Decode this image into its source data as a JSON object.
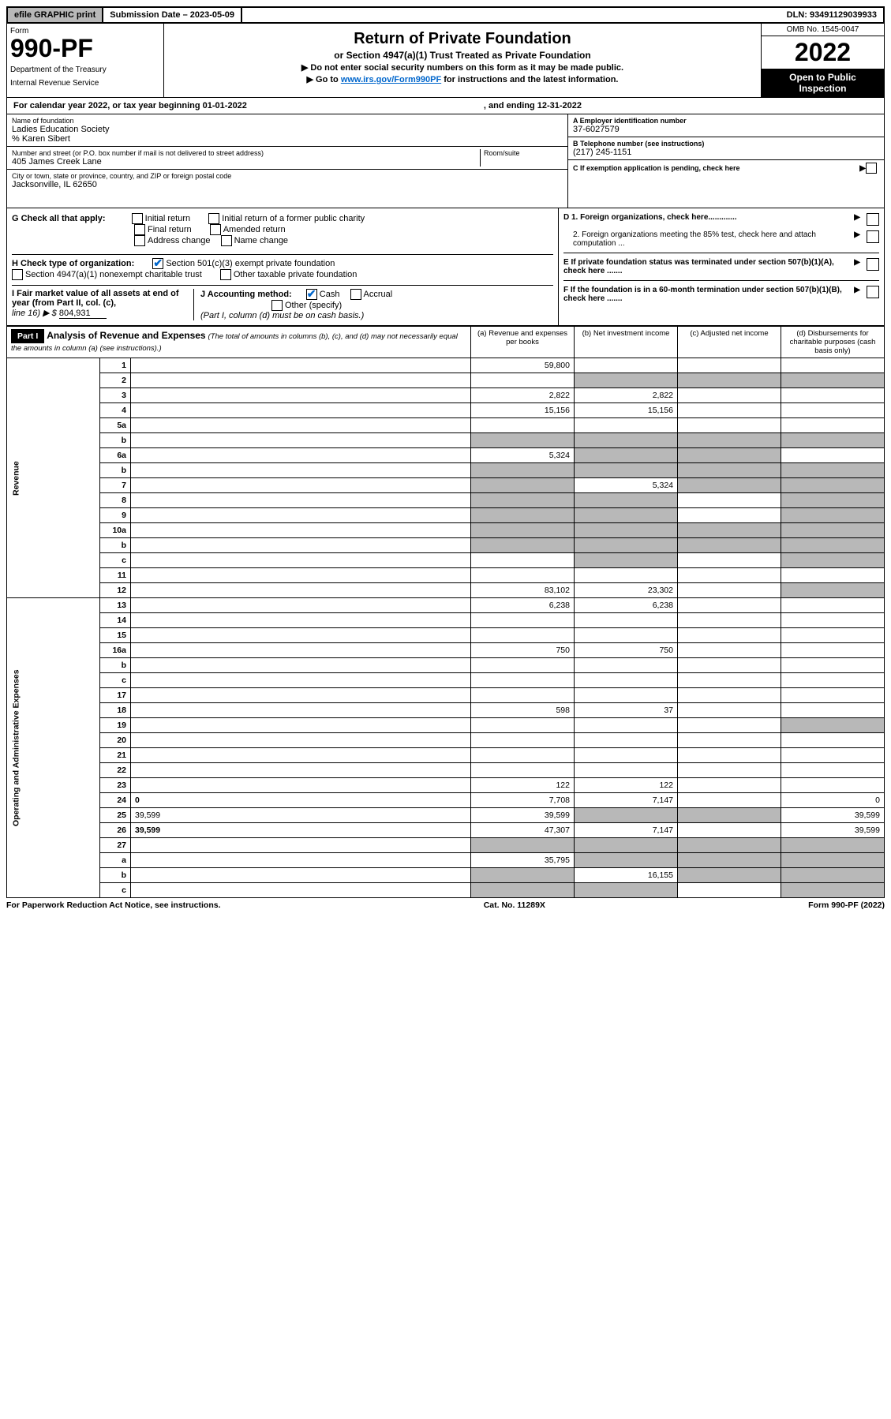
{
  "topbar": {
    "efile": "efile GRAPHIC print",
    "submission": "Submission Date – 2023-05-09",
    "dln": "DLN: 93491129039933"
  },
  "header": {
    "form": "Form",
    "form_num": "990-PF",
    "dept": "Department of the Treasury",
    "irs": "Internal Revenue Service",
    "title": "Return of Private Foundation",
    "sub1": "or Section 4947(a)(1) Trust Treated as Private Foundation",
    "sub2": "▶ Do not enter social security numbers on this form as it may be made public.",
    "sub3_pre": "▶ Go to ",
    "sub3_link": "www.irs.gov/Form990PF",
    "sub3_post": " for instructions and the latest information.",
    "omb": "OMB No. 1545-0047",
    "year": "2022",
    "open": "Open to Public Inspection"
  },
  "cal": {
    "text": "For calendar year 2022, or tax year beginning 01-01-2022",
    "end": ", and ending 12-31-2022"
  },
  "info": {
    "name_lbl": "Name of foundation",
    "name_val": "Ladies Education Society",
    "care_of": "% Karen Sibert",
    "addr_lbl": "Number and street (or P.O. box number if mail is not delivered to street address)",
    "addr_val": "405 James Creek Lane",
    "room_lbl": "Room/suite",
    "city_lbl": "City or town, state or province, country, and ZIP or foreign postal code",
    "city_val": "Jacksonville, IL  62650",
    "a_lbl": "A Employer identification number",
    "a_val": "37-6027579",
    "b_lbl": "B Telephone number (see instructions)",
    "b_val": "(217) 245-1151",
    "c_lbl": "C If exemption application is pending, check here"
  },
  "g": {
    "label": "G Check all that apply:",
    "opts": [
      "Initial return",
      "Initial return of a former public charity",
      "Final return",
      "Amended return",
      "Address change",
      "Name change"
    ]
  },
  "h": {
    "label": "H Check type of organization:",
    "o1": "Section 501(c)(3) exempt private foundation",
    "o2": "Section 4947(a)(1) nonexempt charitable trust",
    "o3": "Other taxable private foundation"
  },
  "ij": {
    "i_lbl": "I Fair market value of all assets at end of year (from Part II, col. (c),",
    "i_line": "line 16) ▶ $",
    "i_val": "804,931",
    "j_lbl": "J Accounting method:",
    "j_cash": "Cash",
    "j_accr": "Accrual",
    "j_other": "Other (specify)",
    "j_note": "(Part I, column (d) must be on cash basis.)"
  },
  "d": {
    "d1": "D 1. Foreign organizations, check here.............",
    "d2": "2. Foreign organizations meeting the 85% test, check here and attach computation ...",
    "e": "E  If private foundation status was terminated under section 507(b)(1)(A), check here .......",
    "f": "F  If the foundation is in a 60-month termination under section 507(b)(1)(B), check here ......."
  },
  "part1": {
    "label": "Part I",
    "title": "Analysis of Revenue and Expenses",
    "title_note": "(The total of amounts in columns (b), (c), and (d) may not necessarily equal the amounts in column (a) (see instructions).)",
    "col_a": "(a)  Revenue and expenses per books",
    "col_b": "(b)  Net investment income",
    "col_c": "(c)  Adjusted net income",
    "col_d": "(d)  Disbursements for charitable purposes (cash basis only)"
  },
  "side": {
    "rev": "Revenue",
    "exp": "Operating and Administrative Expenses"
  },
  "rows": [
    {
      "n": "1",
      "d": "",
      "a": "59,800",
      "b": "",
      "c": ""
    },
    {
      "n": "2",
      "d": "",
      "a": "",
      "b": "",
      "c": "",
      "shade_bcd": true
    },
    {
      "n": "3",
      "d": "",
      "a": "2,822",
      "b": "2,822",
      "c": ""
    },
    {
      "n": "4",
      "d": "",
      "a": "15,156",
      "b": "15,156",
      "c": ""
    },
    {
      "n": "5a",
      "d": "",
      "a": "",
      "b": "",
      "c": ""
    },
    {
      "n": "b",
      "d": "",
      "a": "",
      "b": "",
      "c": "",
      "shade_all": true
    },
    {
      "n": "6a",
      "d": "",
      "a": "5,324",
      "b": "",
      "c": "",
      "shade_bc": true
    },
    {
      "n": "b",
      "d": "",
      "a": "",
      "b": "",
      "c": "",
      "shade_all": true
    },
    {
      "n": "7",
      "d": "",
      "a": "",
      "b": "5,324",
      "c": "",
      "shade_a": true,
      "shade_cd": true
    },
    {
      "n": "8",
      "d": "",
      "a": "",
      "b": "",
      "c": "",
      "shade_ab": true,
      "shade_d": true
    },
    {
      "n": "9",
      "d": "",
      "a": "",
      "b": "",
      "c": "",
      "shade_ab": true,
      "shade_d": true
    },
    {
      "n": "10a",
      "d": "",
      "a": "",
      "b": "",
      "c": "",
      "shade_all": true
    },
    {
      "n": "b",
      "d": "",
      "a": "",
      "b": "",
      "c": "",
      "shade_all": true
    },
    {
      "n": "c",
      "d": "",
      "a": "",
      "b": "",
      "c": "",
      "shade_b": true,
      "shade_d": true
    },
    {
      "n": "11",
      "d": "",
      "a": "",
      "b": "",
      "c": ""
    },
    {
      "n": "12",
      "d": "",
      "a": "83,102",
      "b": "23,302",
      "c": "",
      "bold": true,
      "shade_d": true
    },
    {
      "n": "13",
      "d": "",
      "a": "6,238",
      "b": "6,238",
      "c": ""
    },
    {
      "n": "14",
      "d": "",
      "a": "",
      "b": "",
      "c": ""
    },
    {
      "n": "15",
      "d": "",
      "a": "",
      "b": "",
      "c": ""
    },
    {
      "n": "16a",
      "d": "",
      "a": "750",
      "b": "750",
      "c": ""
    },
    {
      "n": "b",
      "d": "",
      "a": "",
      "b": "",
      "c": ""
    },
    {
      "n": "c",
      "d": "",
      "a": "",
      "b": "",
      "c": ""
    },
    {
      "n": "17",
      "d": "",
      "a": "",
      "b": "",
      "c": ""
    },
    {
      "n": "18",
      "d": "",
      "a": "598",
      "b": "37",
      "c": ""
    },
    {
      "n": "19",
      "d": "",
      "a": "",
      "b": "",
      "c": "",
      "shade_d": true
    },
    {
      "n": "20",
      "d": "",
      "a": "",
      "b": "",
      "c": ""
    },
    {
      "n": "21",
      "d": "",
      "a": "",
      "b": "",
      "c": ""
    },
    {
      "n": "22",
      "d": "",
      "a": "",
      "b": "",
      "c": ""
    },
    {
      "n": "23",
      "d": "",
      "a": "122",
      "b": "122",
      "c": ""
    },
    {
      "n": "24",
      "d": "0",
      "a": "7,708",
      "b": "7,147",
      "c": "",
      "bold": true
    },
    {
      "n": "25",
      "d": "39,599",
      "a": "39,599",
      "b": "",
      "c": "",
      "shade_bc": true
    },
    {
      "n": "26",
      "d": "39,599",
      "a": "47,307",
      "b": "7,147",
      "c": "",
      "bold": true
    },
    {
      "n": "27",
      "d": "",
      "a": "",
      "b": "",
      "c": "",
      "shade_all": true
    },
    {
      "n": "a",
      "d": "",
      "a": "35,795",
      "b": "",
      "c": "",
      "bold": true,
      "shade_bcd": true
    },
    {
      "n": "b",
      "d": "",
      "a": "",
      "b": "16,155",
      "c": "",
      "bold": true,
      "shade_a": true,
      "shade_cd": true
    },
    {
      "n": "c",
      "d": "",
      "a": "",
      "b": "",
      "c": "",
      "bold": true,
      "shade_ab": true,
      "shade_d": true
    }
  ],
  "footer": {
    "left": "For Paperwork Reduction Act Notice, see instructions.",
    "mid": "Cat. No. 11289X",
    "right": "Form 990-PF (2022)"
  }
}
